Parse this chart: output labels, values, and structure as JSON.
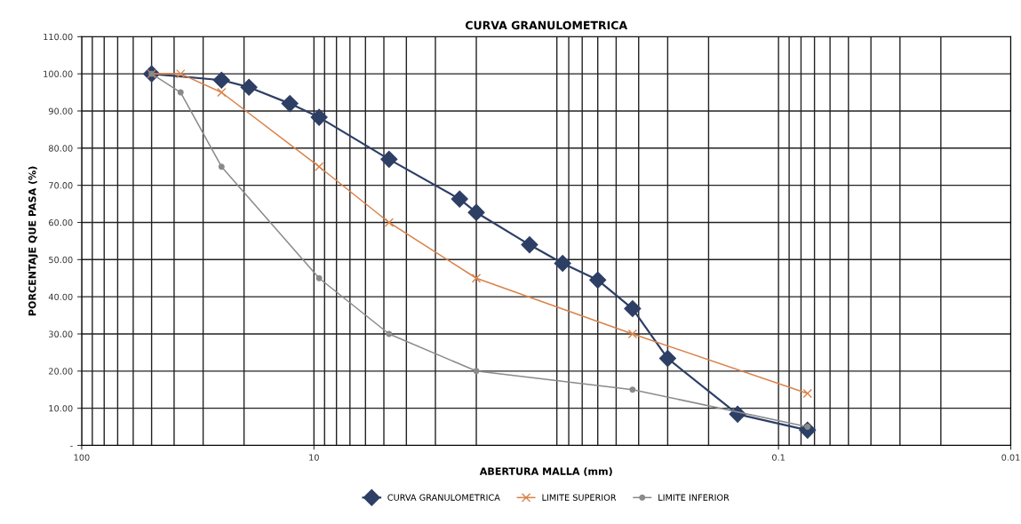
{
  "chart_data": {
    "type": "line",
    "title": "CURVA GRANULOMETRICA",
    "xlabel": "ABERTURA MALLA (mm)",
    "ylabel": "PORCENTAJE QUE PASA (%)",
    "log": "x",
    "xlim": [
      100,
      0.01
    ],
    "xticks": [
      100,
      10,
      0.1,
      0.01
    ],
    "ylim": [
      0,
      110
    ],
    "yticks": [
      {
        "value": 0,
        "label": "-"
      },
      {
        "value": 10,
        "label": "10.00"
      },
      {
        "value": 20,
        "label": "20.00"
      },
      {
        "value": 30,
        "label": "30.00"
      },
      {
        "value": 40,
        "label": "40.00"
      },
      {
        "value": 50,
        "label": "50.00"
      },
      {
        "value": 60,
        "label": "60.00"
      },
      {
        "value": 70,
        "label": "70.00"
      },
      {
        "value": 80,
        "label": "80.00"
      },
      {
        "value": 90,
        "label": "90.00"
      },
      {
        "value": 100,
        "label": "100.00"
      },
      {
        "value": 110,
        "label": "110.00"
      }
    ],
    "grid": true,
    "legend": "bottom",
    "line_style": "solid",
    "series": [
      {
        "name": "CURVA GRANULOMETRICA",
        "color": "#2e3f66",
        "marker": "diamond",
        "x": [
          50,
          25,
          19.05,
          12.7,
          9.5,
          4.75,
          2.36,
          2.0,
          1.18,
          0.85,
          0.6,
          0.425,
          0.3,
          0.15,
          0.075
        ],
        "values": [
          100,
          98.3,
          96.4,
          92,
          88.3,
          77,
          66.3,
          62.7,
          54,
          49,
          44.5,
          36.8,
          23.4,
          8.4,
          4.1
        ]
      },
      {
        "name": "LIMITE SUPERIOR",
        "color": "#d9824a",
        "marker": "cross",
        "x": [
          50,
          37.5,
          25,
          9.5,
          4.75,
          2.0,
          0.425,
          0.075
        ],
        "values": [
          100,
          100,
          95,
          75,
          60,
          45,
          30,
          14
        ]
      },
      {
        "name": "LIMITE INFERIOR",
        "color": "#8a8a8a",
        "marker": "circle",
        "x": [
          50,
          37.5,
          25,
          9.5,
          4.75,
          2.0,
          0.425,
          0.075
        ],
        "values": [
          100,
          95,
          75,
          45,
          30,
          20,
          15,
          5
        ]
      }
    ]
  }
}
